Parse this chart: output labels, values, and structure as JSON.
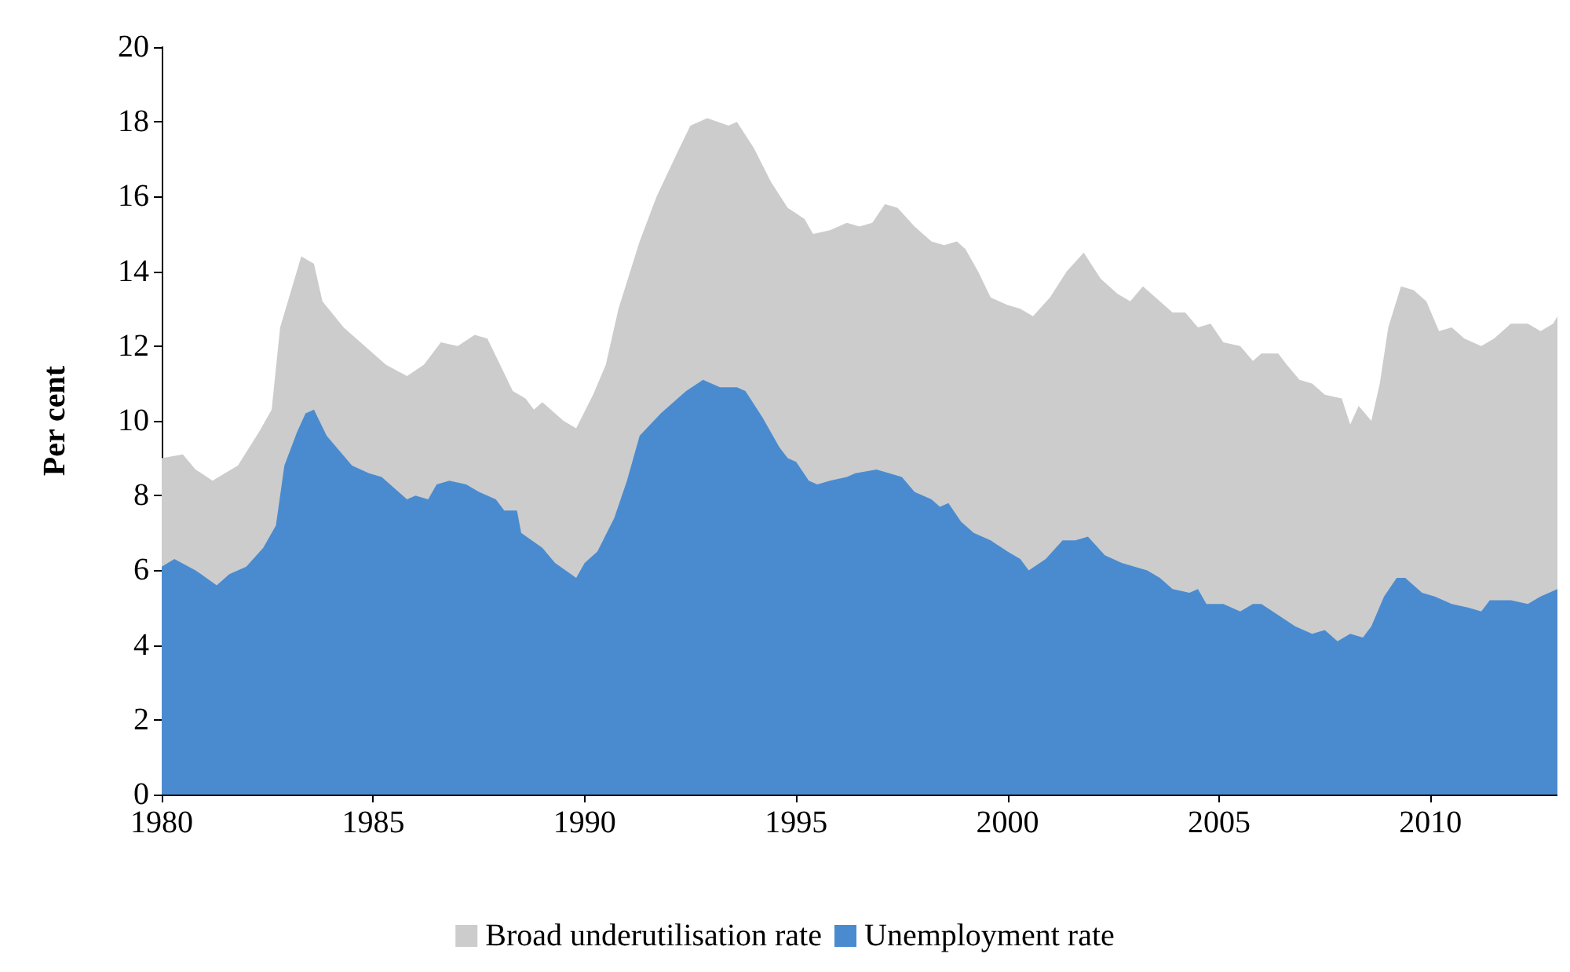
{
  "chart_data": {
    "type": "area",
    "ylabel": "Per cent",
    "xlim": [
      1980,
      2013
    ],
    "xticks": [
      1980,
      1985,
      1990,
      1995,
      2000,
      2005,
      2010
    ],
    "ylim": [
      0,
      20
    ],
    "yticks": [
      0,
      2,
      4,
      6,
      8,
      10,
      12,
      14,
      16,
      18,
      20
    ],
    "grid": false,
    "legend": "bottom",
    "marker": "none",
    "series": [
      {
        "name": "Broad underutilisation rate",
        "color": "#cccccc",
        "x": [
          1980.0,
          1980.5,
          1980.8,
          1981.2,
          1981.8,
          1982.3,
          1982.6,
          1982.8,
          1983.3,
          1983.6,
          1983.8,
          1984.3,
          1984.8,
          1985.3,
          1985.8,
          1986.2,
          1986.6,
          1987.0,
          1987.4,
          1987.7,
          1988.0,
          1988.3,
          1988.6,
          1988.8,
          1989.0,
          1989.5,
          1989.8,
          1990.2,
          1990.5,
          1990.8,
          1991.3,
          1991.7,
          1992.2,
          1992.5,
          1992.9,
          1993.4,
          1993.6,
          1994.0,
          1994.4,
          1994.8,
          1995.2,
          1995.4,
          1995.8,
          1996.2,
          1996.5,
          1996.8,
          1997.1,
          1997.4,
          1997.8,
          1998.2,
          1998.5,
          1998.8,
          1999.0,
          1999.3,
          1999.6,
          2000.0,
          2000.3,
          2000.6,
          2001.0,
          2001.4,
          2001.8,
          2002.2,
          2002.6,
          2002.9,
          2003.2,
          2003.5,
          2003.9,
          2004.2,
          2004.5,
          2004.8,
          2005.1,
          2005.5,
          2005.8,
          2006.0,
          2006.4,
          2006.6,
          2006.9,
          2007.2,
          2007.5,
          2007.9,
          2008.1,
          2008.3,
          2008.6,
          2008.8,
          2009.0,
          2009.3,
          2009.6,
          2009.9,
          2010.2,
          2010.5,
          2010.8,
          2011.2,
          2011.5,
          2011.9,
          2012.3,
          2012.6,
          2012.9,
          2013.0
        ],
        "values": [
          9.0,
          9.1,
          8.7,
          8.4,
          8.8,
          9.7,
          10.3,
          12.5,
          14.4,
          14.2,
          13.2,
          12.5,
          12.0,
          11.5,
          11.2,
          11.5,
          12.1,
          12.0,
          12.3,
          12.2,
          11.5,
          10.8,
          10.6,
          10.3,
          10.5,
          10.0,
          9.8,
          10.7,
          11.5,
          13.0,
          14.8,
          16.0,
          17.2,
          17.9,
          18.1,
          17.9,
          18.0,
          17.3,
          16.4,
          15.7,
          15.4,
          15.0,
          15.1,
          15.3,
          15.2,
          15.3,
          15.8,
          15.7,
          15.2,
          14.8,
          14.7,
          14.8,
          14.6,
          14.0,
          13.3,
          13.1,
          13.0,
          12.8,
          13.3,
          14.0,
          14.5,
          13.8,
          13.4,
          13.2,
          13.6,
          13.3,
          12.9,
          12.9,
          12.5,
          12.6,
          12.1,
          12.0,
          11.6,
          11.8,
          11.8,
          11.5,
          11.1,
          11.0,
          10.7,
          10.6,
          9.9,
          10.4,
          10.0,
          11.0,
          12.5,
          13.6,
          13.5,
          13.2,
          12.4,
          12.5,
          12.2,
          12.0,
          12.2,
          12.6,
          12.6,
          12.4,
          12.6,
          12.8
        ]
      },
      {
        "name": "Unemployment rate",
        "color": "#4a8bd0",
        "x": [
          1980.0,
          1980.3,
          1980.8,
          1981.3,
          1981.6,
          1982.0,
          1982.4,
          1982.7,
          1982.9,
          1983.2,
          1983.4,
          1983.6,
          1983.9,
          1984.2,
          1984.5,
          1984.9,
          1985.2,
          1985.5,
          1985.8,
          1986.0,
          1986.3,
          1986.5,
          1986.8,
          1987.2,
          1987.5,
          1987.9,
          1988.1,
          1988.4,
          1988.5,
          1989.0,
          1989.3,
          1989.8,
          1990.0,
          1990.3,
          1990.7,
          1991.0,
          1991.3,
          1991.8,
          1992.1,
          1992.4,
          1992.8,
          1993.2,
          1993.6,
          1993.8,
          1994.2,
          1994.6,
          1994.8,
          1995.0,
          1995.3,
          1995.5,
          1995.8,
          1996.2,
          1996.4,
          1996.9,
          1997.2,
          1997.5,
          1997.8,
          1998.2,
          1998.4,
          1998.6,
          1998.9,
          1999.2,
          1999.6,
          2000.0,
          2000.3,
          2000.5,
          2000.9,
          2001.3,
          2001.6,
          2001.9,
          2002.3,
          2002.7,
          2003.0,
          2003.3,
          2003.6,
          2003.9,
          2004.3,
          2004.5,
          2004.7,
          2005.1,
          2005.5,
          2005.8,
          2006.0,
          2006.4,
          2006.8,
          2007.2,
          2007.5,
          2007.8,
          2008.1,
          2008.4,
          2008.6,
          2008.9,
          2009.2,
          2009.4,
          2009.8,
          2010.1,
          2010.5,
          2010.9,
          2011.2,
          2011.4,
          2011.9,
          2012.3,
          2012.6,
          2013.0
        ],
        "values": [
          6.1,
          6.3,
          6.0,
          5.6,
          5.9,
          6.1,
          6.6,
          7.2,
          8.8,
          9.7,
          10.2,
          10.3,
          9.6,
          9.2,
          8.8,
          8.6,
          8.5,
          8.2,
          7.9,
          8.0,
          7.9,
          8.3,
          8.4,
          8.3,
          8.1,
          7.9,
          7.6,
          7.6,
          7.0,
          6.6,
          6.2,
          5.8,
          6.2,
          6.5,
          7.4,
          8.4,
          9.6,
          10.2,
          10.5,
          10.8,
          11.1,
          10.9,
          10.9,
          10.8,
          10.1,
          9.3,
          9.0,
          8.9,
          8.4,
          8.3,
          8.4,
          8.5,
          8.6,
          8.7,
          8.6,
          8.5,
          8.1,
          7.9,
          7.7,
          7.8,
          7.3,
          7.0,
          6.8,
          6.5,
          6.3,
          6.0,
          6.3,
          6.8,
          6.8,
          6.9,
          6.4,
          6.2,
          6.1,
          6.0,
          5.8,
          5.5,
          5.4,
          5.5,
          5.1,
          5.1,
          4.9,
          5.1,
          5.1,
          4.8,
          4.5,
          4.3,
          4.4,
          4.1,
          4.3,
          4.2,
          4.5,
          5.3,
          5.8,
          5.8,
          5.4,
          5.3,
          5.1,
          5.0,
          4.9,
          5.2,
          5.2,
          5.1,
          5.3,
          5.5
        ]
      }
    ]
  }
}
